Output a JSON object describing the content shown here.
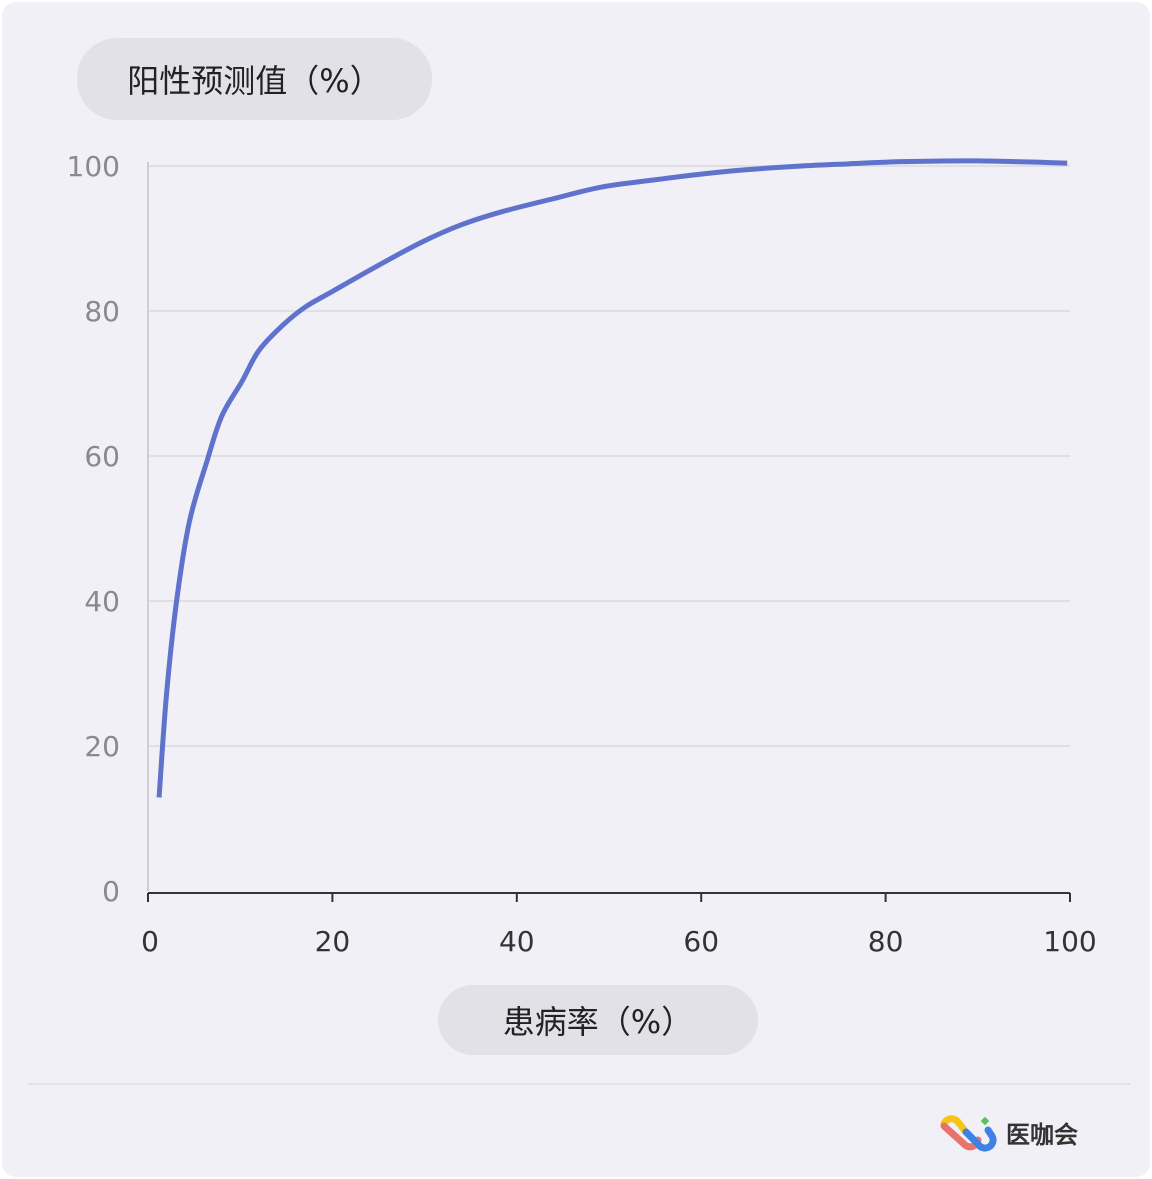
{
  "chart_data": {
    "type": "line",
    "ylabel": "阳性预测值（%）",
    "xlabel": "患病率（%）",
    "xlim": [
      0,
      100
    ],
    "ylim": [
      0,
      100
    ],
    "xticks": [
      "0",
      "20",
      "40",
      "60",
      "80",
      "100"
    ],
    "yticks": [
      "0",
      "20",
      "40",
      "60",
      "80",
      "100"
    ],
    "grid": "horizontal",
    "line_color": "#5f72cc",
    "series": [
      {
        "x": [
          1.2,
          2,
          3.1,
          4.5,
          6.4,
          8,
          10.2,
          12,
          14.5,
          17,
          20,
          25,
          29.7,
          34,
          38.4,
          44,
          49.2,
          55,
          60.1,
          65,
          70.9,
          76,
          81.8,
          90,
          99.7
        ],
        "y": [
          12.9,
          27,
          40,
          51,
          59.3,
          65.5,
          70.3,
          74.5,
          77.9,
          80.5,
          82.7,
          86.3,
          89.5,
          91.9,
          93.7,
          95.5,
          97.1,
          98.1,
          98.9,
          99.5,
          100,
          100.3,
          100.6,
          100.7,
          100.4
        ]
      }
    ]
  },
  "brand": {
    "name": "医咖会"
  }
}
